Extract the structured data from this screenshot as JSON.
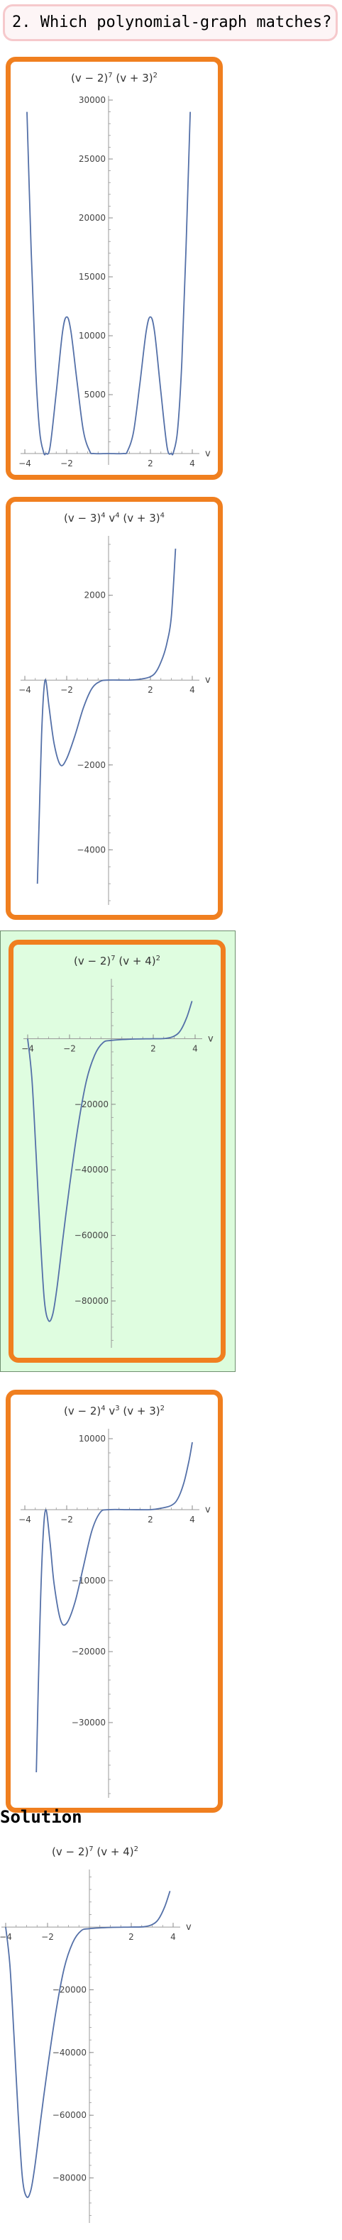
{
  "question": {
    "text": "2. Which polynomial-graph matches?"
  },
  "solution": {
    "heading": "Solution"
  },
  "colors": {
    "option_border": "#f07f1f",
    "selected_fill": "#dffde0",
    "curve": "#5470a8"
  },
  "options": [
    {
      "title": {
        "base1": "(v − 2)",
        "exp1": "7",
        "base2": " (v + 3)",
        "exp2": "2"
      },
      "selected": false,
      "chart_data": {
        "type": "line",
        "xlabel": "v",
        "xlim": [
          -4,
          4
        ],
        "ylim": [
          -600,
          30000
        ],
        "x_ticks": [
          -4,
          -2,
          2,
          4
        ],
        "x_tick_labels": [
          "−4",
          "−2",
          "2",
          "4"
        ],
        "y_ticks": [
          5000,
          10000,
          15000,
          20000,
          25000,
          30000
        ],
        "y_tick_labels": [
          "5000",
          "10000",
          "15000",
          "20000",
          "25000",
          "30000"
        ],
        "series": [
          {
            "points": [
              [
                -3.9,
                29000
              ],
              [
                -3.7,
                17500
              ],
              [
                -3.5,
                7800
              ],
              [
                -3.3,
                2000
              ],
              [
                -3.1,
                100
              ],
              [
                -3.0,
                0
              ],
              [
                -2.8,
                500
              ],
              [
                -2.5,
                5200
              ],
              [
                -2.2,
                10300
              ],
              [
                -2.0,
                11600
              ],
              [
                -1.8,
                10400
              ],
              [
                -1.5,
                6000
              ],
              [
                -1.2,
                1900
              ],
              [
                -0.9,
                200
              ],
              [
                -0.7,
                0
              ],
              [
                0,
                0
              ],
              [
                0.7,
                0
              ],
              [
                0.9,
                200
              ],
              [
                1.2,
                1900
              ],
              [
                1.5,
                6000
              ],
              [
                1.8,
                10400
              ],
              [
                2.0,
                11600
              ],
              [
                2.2,
                10300
              ],
              [
                2.5,
                5200
              ],
              [
                2.8,
                500
              ],
              [
                3.0,
                0
              ],
              [
                3.1,
                100
              ],
              [
                3.3,
                2000
              ],
              [
                3.5,
                7800
              ],
              [
                3.7,
                17500
              ],
              [
                3.9,
                29000
              ]
            ]
          }
        ]
      }
    },
    {
      "title": {
        "base1": "(v − 3)",
        "exp1": "4",
        "base2": " v",
        "exp2": "4",
        "base3": " (v + 3)",
        "exp3": "4"
      },
      "selected": false,
      "chart_data": {
        "type": "line",
        "xlabel": "v",
        "xlim": [
          -4,
          4
        ],
        "ylim": [
          -5200,
          3300
        ],
        "x_ticks": [
          -4,
          -2,
          2,
          4
        ],
        "x_tick_labels": [
          "−4",
          "−2",
          "2",
          "4"
        ],
        "y_ticks": [
          -4000,
          -2000,
          2000
        ],
        "y_tick_labels": [
          "−4000",
          "−2000",
          "2000"
        ],
        "series": [
          {
            "points": [
              [
                -3.4,
                -4800
              ],
              [
                -3.3,
                -3000
              ],
              [
                -3.2,
                -1300
              ],
              [
                -3.1,
                -300
              ],
              [
                -3.0,
                0
              ],
              [
                -2.85,
                -600
              ],
              [
                -2.6,
                -1500
              ],
              [
                -2.3,
                -2000
              ],
              [
                -2.0,
                -1850
              ],
              [
                -1.6,
                -1300
              ],
              [
                -1.2,
                -650
              ],
              [
                -0.8,
                -200
              ],
              [
                -0.4,
                -30
              ],
              [
                0,
                0
              ],
              [
                1.0,
                0
              ],
              [
                1.5,
                20
              ],
              [
                2.0,
                80
              ],
              [
                2.3,
                220
              ],
              [
                2.6,
                550
              ],
              [
                2.8,
                900
              ],
              [
                3.0,
                1500
              ],
              [
                3.2,
                3100
              ]
            ]
          }
        ]
      }
    },
    {
      "title": {
        "base1": "(v − 2)",
        "exp1": "7",
        "base2": " (v + 4)",
        "exp2": "2"
      },
      "selected": true,
      "chart_data": {
        "type": "line",
        "xlabel": "v",
        "xlim": [
          -4,
          4
        ],
        "ylim": [
          -93000,
          17000
        ],
        "x_ticks": [
          -4,
          -2,
          2,
          4
        ],
        "x_tick_labels": [
          "−4",
          "−2",
          "2",
          "4"
        ],
        "y_ticks": [
          -80000,
          -60000,
          -40000,
          -20000
        ],
        "y_tick_labels": [
          "−80000",
          "−60000",
          "−40000",
          "−20000"
        ],
        "series": [
          {
            "points": [
              [
                -4.0,
                0
              ],
              [
                -3.8,
                -12000
              ],
              [
                -3.6,
                -35000
              ],
              [
                -3.4,
                -60000
              ],
              [
                -3.2,
                -80000
              ],
              [
                -3.0,
                -86000
              ],
              [
                -2.8,
                -84000
              ],
              [
                -2.6,
                -76000
              ],
              [
                -2.3,
                -60000
              ],
              [
                -2.0,
                -45000
              ],
              [
                -1.6,
                -27000
              ],
              [
                -1.2,
                -13000
              ],
              [
                -0.8,
                -5000
              ],
              [
                -0.4,
                -1200
              ],
              [
                0,
                -500
              ],
              [
                1.0,
                -100
              ],
              [
                2.0,
                0
              ],
              [
                2.6,
                100
              ],
              [
                3.0,
                800
              ],
              [
                3.3,
                2500
              ],
              [
                3.6,
                6500
              ],
              [
                3.85,
                11500
              ]
            ]
          }
        ]
      }
    },
    {
      "title": {
        "base1": "(v − 2)",
        "exp1": "4",
        "base2": " v",
        "exp2": "3",
        "base3": " (v + 3)",
        "exp3": "2"
      },
      "selected": false,
      "chart_data": {
        "type": "line",
        "xlabel": "v",
        "xlim": [
          -4,
          4
        ],
        "ylim": [
          -40000,
          10800
        ],
        "x_ticks": [
          -4,
          -2,
          2,
          4
        ],
        "x_tick_labels": [
          "−4",
          "−2",
          "2",
          "4"
        ],
        "y_ticks": [
          -30000,
          -20000,
          -10000,
          10000
        ],
        "y_tick_labels": [
          "−30000",
          "−20000",
          "−10000",
          "10000"
        ],
        "series": [
          {
            "points": [
              [
                -3.45,
                -37000
              ],
              [
                -3.3,
                -18000
              ],
              [
                -3.15,
                -5000
              ],
              [
                -3.0,
                0
              ],
              [
                -2.8,
                -4500
              ],
              [
                -2.6,
                -10500
              ],
              [
                -2.3,
                -15500
              ],
              [
                -2.0,
                -16000
              ],
              [
                -1.6,
                -13000
              ],
              [
                -1.2,
                -8000
              ],
              [
                -0.8,
                -3000
              ],
              [
                -0.4,
                -400
              ],
              [
                0,
                0
              ],
              [
                1.0,
                0
              ],
              [
                2.0,
                0
              ],
              [
                2.5,
                200
              ],
              [
                3.0,
                600
              ],
              [
                3.3,
                1500
              ],
              [
                3.6,
                3800
              ],
              [
                3.85,
                7000
              ],
              [
                4.0,
                9500
              ]
            ]
          }
        ]
      }
    }
  ],
  "solution_plot": {
    "title": {
      "base1": "(v − 2)",
      "exp1": "7",
      "base2": " (v + 4)",
      "exp2": "2"
    },
    "chart_data": {
      "type": "line",
      "xlabel": "v",
      "xlim": [
        -4,
        4
      ],
      "ylim": [
        -93000,
        17000
      ],
      "x_ticks": [
        -4,
        -2,
        2,
        4
      ],
      "x_tick_labels": [
        "−4",
        "−2",
        "2",
        "4"
      ],
      "y_ticks": [
        -80000,
        -60000,
        -40000,
        -20000
      ],
      "y_tick_labels": [
        "−80000",
        "−60000",
        "−40000",
        "−20000"
      ],
      "series": [
        {
          "points": [
            [
              -4.0,
              0
            ],
            [
              -3.8,
              -12000
            ],
            [
              -3.6,
              -35000
            ],
            [
              -3.4,
              -60000
            ],
            [
              -3.2,
              -80000
            ],
            [
              -3.0,
              -86000
            ],
            [
              -2.8,
              -84000
            ],
            [
              -2.6,
              -76000
            ],
            [
              -2.3,
              -60000
            ],
            [
              -2.0,
              -45000
            ],
            [
              -1.6,
              -27000
            ],
            [
              -1.2,
              -13000
            ],
            [
              -0.8,
              -5000
            ],
            [
              -0.4,
              -1200
            ],
            [
              0,
              -500
            ],
            [
              1.0,
              -100
            ],
            [
              2.0,
              0
            ],
            [
              2.6,
              100
            ],
            [
              3.0,
              800
            ],
            [
              3.3,
              2500
            ],
            [
              3.6,
              6500
            ],
            [
              3.85,
              11500
            ]
          ]
        }
      ]
    }
  }
}
